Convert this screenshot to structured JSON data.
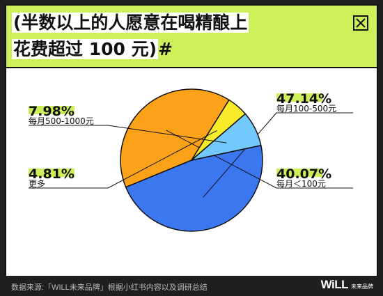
{
  "header": {
    "title_line1": "(半数以上的人愿意在喝精酿上",
    "title_line2": "花费超过 100 元)",
    "title_mark": "#"
  },
  "chart_data": {
    "type": "pie",
    "title": "(半数以上的人愿意在喝精酿上花费超过 100 元)",
    "slices": [
      {
        "label": "每月100-500元",
        "value": 47.14,
        "value_label": "47.14%",
        "color": "#3b78f0"
      },
      {
        "label": "每月＜100元",
        "value": 40.07,
        "value_label": "40.07%",
        "color": "#fba219"
      },
      {
        "label": "更多",
        "value": 4.81,
        "value_label": "4.81%",
        "color": "#f8ec2a"
      },
      {
        "label": "每月500-1000元",
        "value": 7.98,
        "value_label": "7.98%",
        "color": "#73c9fb"
      }
    ]
  },
  "footer": {
    "source": "数据来源:「WILL未来品牌」根据小红书内容以及调研总结",
    "logo_mark": "WiLL",
    "logo_sub": "未来品牌"
  },
  "colors": {
    "accent": "#cdf05a",
    "background": "#1f1f1f",
    "panel": "#ffffff"
  },
  "icons": {
    "close": "close-icon"
  }
}
